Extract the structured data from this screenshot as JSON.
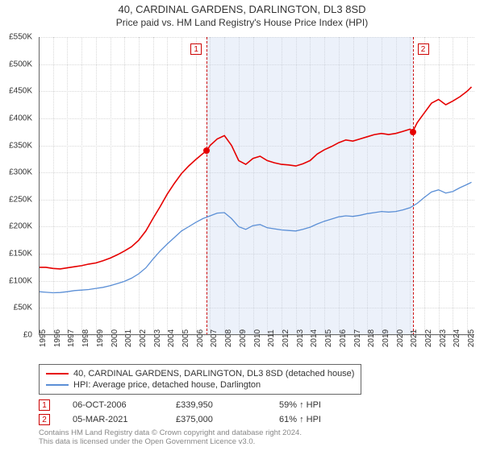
{
  "title": "40, CARDINAL GARDENS, DARLINGTON, DL3 8SD",
  "subtitle": "Price paid vs. HM Land Registry's House Price Index (HPI)",
  "chart": {
    "type": "line",
    "background_color": "#ffffff",
    "grid_color": "#d8d8d8",
    "axis_color": "#666666",
    "shade_color": "rgba(200,215,240,0.35)",
    "shade_x_start": 2006.76,
    "shade_x_end": 2021.18,
    "xlim": [
      1995,
      2025.5
    ],
    "ylim": [
      0,
      550000
    ],
    "ytick_step": 50000,
    "yticks": [
      "£0",
      "£50K",
      "£100K",
      "£150K",
      "£200K",
      "£250K",
      "£300K",
      "£350K",
      "£400K",
      "£450K",
      "£500K",
      "£550K"
    ],
    "xticks": [
      1995,
      1996,
      1997,
      1998,
      1999,
      2000,
      2001,
      2002,
      2003,
      2004,
      2005,
      2006,
      2007,
      2008,
      2009,
      2010,
      2011,
      2012,
      2013,
      2014,
      2015,
      2016,
      2017,
      2018,
      2019,
      2020,
      2021,
      2022,
      2023,
      2024,
      2025
    ],
    "tick_fontsize": 10,
    "series": [
      {
        "name": "property",
        "label": "40, CARDINAL GARDENS, DARLINGTON, DL3 8SD (detached house)",
        "color": "#e60000",
        "line_width": 1.6,
        "points": [
          [
            1995,
            125000
          ],
          [
            1995.5,
            125000
          ],
          [
            1996,
            123000
          ],
          [
            1996.5,
            122000
          ],
          [
            1997,
            124000
          ],
          [
            1997.5,
            126000
          ],
          [
            1998,
            128000
          ],
          [
            1998.5,
            131000
          ],
          [
            1999,
            133000
          ],
          [
            1999.5,
            137000
          ],
          [
            2000,
            142000
          ],
          [
            2000.5,
            148000
          ],
          [
            2001,
            155000
          ],
          [
            2001.5,
            163000
          ],
          [
            2002,
            175000
          ],
          [
            2002.5,
            192000
          ],
          [
            2003,
            215000
          ],
          [
            2003.5,
            237000
          ],
          [
            2004,
            260000
          ],
          [
            2004.5,
            280000
          ],
          [
            2005,
            298000
          ],
          [
            2005.5,
            312000
          ],
          [
            2006,
            324000
          ],
          [
            2006.5,
            335000
          ],
          [
            2006.76,
            339950
          ],
          [
            2007,
            350000
          ],
          [
            2007.5,
            362000
          ],
          [
            2008,
            368000
          ],
          [
            2008.5,
            350000
          ],
          [
            2009,
            322000
          ],
          [
            2009.5,
            315000
          ],
          [
            2010,
            326000
          ],
          [
            2010.5,
            330000
          ],
          [
            2011,
            322000
          ],
          [
            2011.5,
            318000
          ],
          [
            2012,
            315000
          ],
          [
            2012.5,
            314000
          ],
          [
            2013,
            312000
          ],
          [
            2013.5,
            316000
          ],
          [
            2014,
            322000
          ],
          [
            2014.5,
            334000
          ],
          [
            2015,
            342000
          ],
          [
            2015.5,
            348000
          ],
          [
            2016,
            355000
          ],
          [
            2016.5,
            360000
          ],
          [
            2017,
            358000
          ],
          [
            2017.5,
            362000
          ],
          [
            2018,
            366000
          ],
          [
            2018.5,
            370000
          ],
          [
            2019,
            372000
          ],
          [
            2019.5,
            370000
          ],
          [
            2020,
            372000
          ],
          [
            2020.5,
            376000
          ],
          [
            2021,
            380000
          ],
          [
            2021.18,
            375000
          ],
          [
            2021.5,
            392000
          ],
          [
            2022,
            410000
          ],
          [
            2022.5,
            428000
          ],
          [
            2023,
            435000
          ],
          [
            2023.5,
            425000
          ],
          [
            2024,
            432000
          ],
          [
            2024.5,
            440000
          ],
          [
            2025,
            450000
          ],
          [
            2025.3,
            458000
          ]
        ]
      },
      {
        "name": "hpi",
        "label": "HPI: Average price, detached house, Darlington",
        "color": "#5b8fd6",
        "line_width": 1.3,
        "points": [
          [
            1995,
            80000
          ],
          [
            1995.5,
            79000
          ],
          [
            1996,
            78000
          ],
          [
            1996.5,
            78500
          ],
          [
            1997,
            80000
          ],
          [
            1997.5,
            82000
          ],
          [
            1998,
            83000
          ],
          [
            1998.5,
            84000
          ],
          [
            1999,
            86000
          ],
          [
            1999.5,
            88000
          ],
          [
            2000,
            91000
          ],
          [
            2000.5,
            95000
          ],
          [
            2001,
            99000
          ],
          [
            2001.5,
            105000
          ],
          [
            2002,
            113000
          ],
          [
            2002.5,
            124000
          ],
          [
            2003,
            140000
          ],
          [
            2003.5,
            155000
          ],
          [
            2004,
            168000
          ],
          [
            2004.5,
            180000
          ],
          [
            2005,
            192000
          ],
          [
            2005.5,
            200000
          ],
          [
            2006,
            208000
          ],
          [
            2006.5,
            215000
          ],
          [
            2007,
            220000
          ],
          [
            2007.5,
            225000
          ],
          [
            2008,
            226000
          ],
          [
            2008.5,
            215000
          ],
          [
            2009,
            200000
          ],
          [
            2009.5,
            195000
          ],
          [
            2010,
            202000
          ],
          [
            2010.5,
            204000
          ],
          [
            2011,
            198000
          ],
          [
            2011.5,
            196000
          ],
          [
            2012,
            194000
          ],
          [
            2012.5,
            193000
          ],
          [
            2013,
            192000
          ],
          [
            2013.5,
            195000
          ],
          [
            2014,
            199000
          ],
          [
            2014.5,
            205000
          ],
          [
            2015,
            210000
          ],
          [
            2015.5,
            214000
          ],
          [
            2016,
            218000
          ],
          [
            2016.5,
            220000
          ],
          [
            2017,
            219000
          ],
          [
            2017.5,
            221000
          ],
          [
            2018,
            224000
          ],
          [
            2018.5,
            226000
          ],
          [
            2019,
            228000
          ],
          [
            2019.5,
            227000
          ],
          [
            2020,
            228000
          ],
          [
            2020.5,
            231000
          ],
          [
            2021,
            235000
          ],
          [
            2021.5,
            243000
          ],
          [
            2022,
            254000
          ],
          [
            2022.5,
            264000
          ],
          [
            2023,
            268000
          ],
          [
            2023.5,
            262000
          ],
          [
            2024,
            265000
          ],
          [
            2024.5,
            272000
          ],
          [
            2025,
            278000
          ],
          [
            2025.3,
            282000
          ]
        ]
      }
    ],
    "sale_markers": [
      {
        "idx": "1",
        "x": 2006.76,
        "y": 339950,
        "color": "#e60000"
      },
      {
        "idx": "2",
        "x": 2021.18,
        "y": 375000,
        "color": "#e60000"
      }
    ],
    "marker_badge_color": "#cc0000"
  },
  "legend": {
    "rows": [
      {
        "color": "#e60000",
        "label": "40, CARDINAL GARDENS, DARLINGTON, DL3 8SD (detached house)"
      },
      {
        "color": "#5b8fd6",
        "label": "HPI: Average price, detached house, Darlington"
      }
    ]
  },
  "sales_table": {
    "badge_border": "#cc0000",
    "rows": [
      {
        "idx": "1",
        "date": "06-OCT-2006",
        "price": "£339,950",
        "hpi_ratio": "59% ↑ HPI"
      },
      {
        "idx": "2",
        "date": "05-MAR-2021",
        "price": "£375,000",
        "hpi_ratio": "61% ↑ HPI"
      }
    ]
  },
  "footer": {
    "line1": "Contains HM Land Registry data © Crown copyright and database right 2024.",
    "line2": "This data is licensed under the Open Government Licence v3.0."
  }
}
